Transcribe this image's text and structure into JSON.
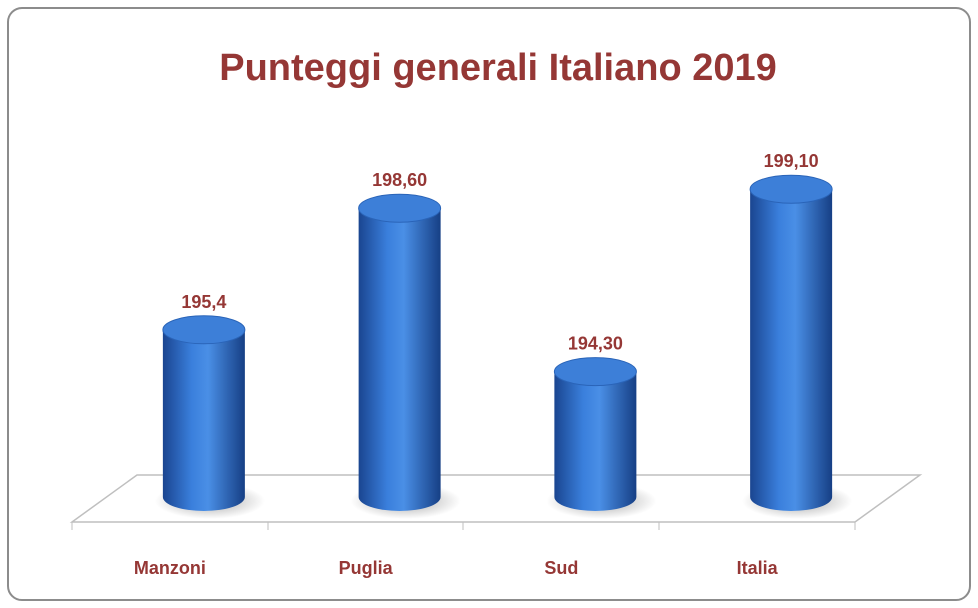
{
  "chart_data": {
    "type": "bar3d",
    "title": "Punteggi generali Italiano 2019",
    "categories": [
      "Manzoni",
      "Puglia",
      "Sud",
      "Italia"
    ],
    "values": [
      195.4,
      198.6,
      194.3,
      199.1
    ],
    "value_labels": [
      "195,4",
      "198,60",
      "194,30",
      "199,10"
    ],
    "color": "#3d7fd8",
    "ylim": [
      191,
      200
    ]
  }
}
